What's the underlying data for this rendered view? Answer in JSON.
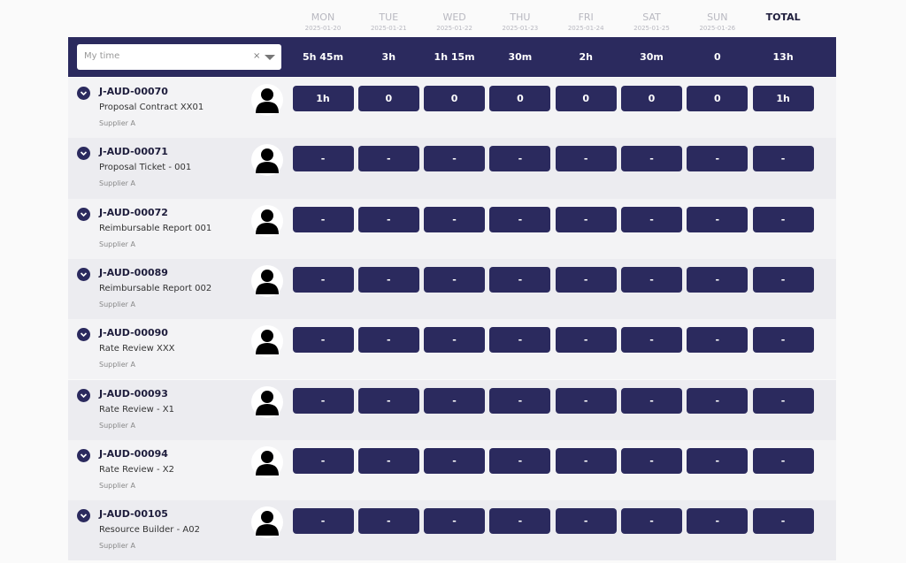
{
  "days": [
    {
      "name": "MON",
      "date": "2025-01-20"
    },
    {
      "name": "TUE",
      "date": "2025-01-21"
    },
    {
      "name": "WED",
      "date": "2025-01-22"
    },
    {
      "name": "THU",
      "date": "2025-01-23"
    },
    {
      "name": "FRI",
      "date": "2025-01-24"
    },
    {
      "name": "SAT",
      "date": "2025-01-25"
    },
    {
      "name": "SUN",
      "date": "2025-01-26"
    }
  ],
  "total_label": "TOTAL",
  "filter": {
    "placeholder": "My time",
    "clear": "×"
  },
  "totals": [
    "5h 45m",
    "3h",
    "1h 15m",
    "30m",
    "2h",
    "30m",
    "0",
    "13h"
  ],
  "rows": [
    {
      "id": "J-AUD-00070",
      "title": "Proposal Contract XX01",
      "supplier": "Supplier A",
      "cells": [
        "1h",
        "0",
        "0",
        "0",
        "0",
        "0",
        "0",
        "1h"
      ]
    },
    {
      "id": "J-AUD-00071",
      "title": "Proposal Ticket - 001",
      "supplier": "Supplier A",
      "cells": [
        "-",
        "-",
        "-",
        "-",
        "-",
        "-",
        "-",
        "-"
      ]
    },
    {
      "id": "J-AUD-00072",
      "title": "Reimbursable Report 001",
      "supplier": "Supplier A",
      "cells": [
        "-",
        "-",
        "-",
        "-",
        "-",
        "-",
        "-",
        "-"
      ]
    },
    {
      "id": "J-AUD-00089",
      "title": "Reimbursable Report 002",
      "supplier": "Supplier A",
      "cells": [
        "-",
        "-",
        "-",
        "-",
        "-",
        "-",
        "-",
        "-"
      ]
    },
    {
      "id": "J-AUD-00090",
      "title": "Rate Review XXX",
      "supplier": "Supplier A",
      "cells": [
        "-",
        "-",
        "-",
        "-",
        "-",
        "-",
        "-",
        "-"
      ]
    },
    {
      "id": "J-AUD-00093",
      "title": "Rate Review - X1",
      "supplier": "Supplier A",
      "cells": [
        "-",
        "-",
        "-",
        "-",
        "-",
        "-",
        "-",
        "-"
      ]
    },
    {
      "id": "J-AUD-00094",
      "title": "Rate Review - X2",
      "supplier": "Supplier A",
      "cells": [
        "-",
        "-",
        "-",
        "-",
        "-",
        "-",
        "-",
        "-"
      ]
    },
    {
      "id": "J-AUD-00105",
      "title": "Resource Builder - A02",
      "supplier": "Supplier A",
      "cells": [
        "-",
        "-",
        "-",
        "-",
        "-",
        "-",
        "-",
        "-"
      ]
    }
  ]
}
